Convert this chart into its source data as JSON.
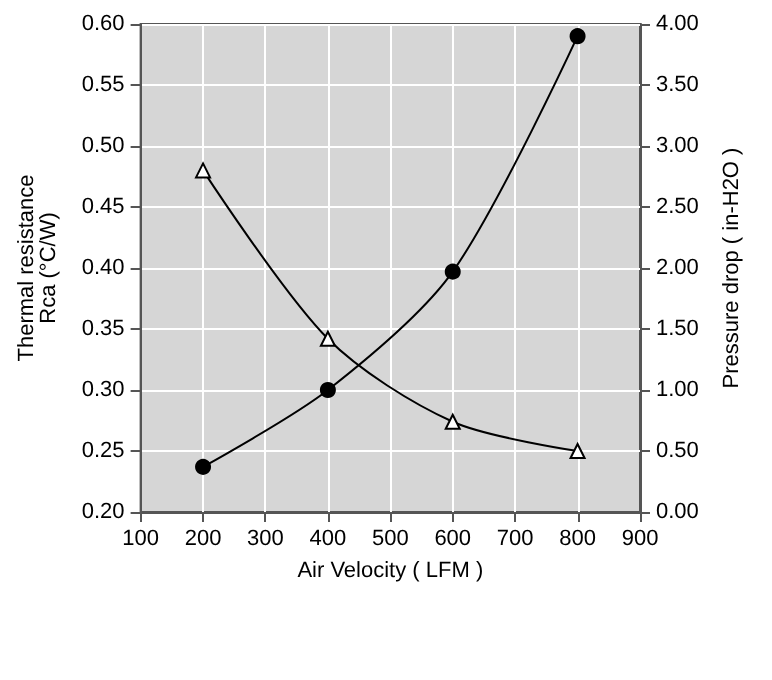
{
  "chart_data": {
    "type": "line",
    "xlabel": "Air Velocity ( LFM )",
    "ylabel": "Thermal resistance\nRca (°C/W)",
    "y2label": "Pressure drop ( in-H2O )",
    "x": [
      200,
      400,
      600,
      800
    ],
    "series": [
      {
        "color": "#000000",
        "marker": "triangle",
        "values": [
          0.48,
          0.342,
          0.274,
          0.25
        ]
      },
      {
        "color": "#000000",
        "marker": "circle",
        "axis": "y2",
        "values": [
          0.37,
          1.0,
          1.97,
          3.9
        ]
      }
    ],
    "xlim": [
      100,
      900
    ],
    "xticks": [
      100,
      200,
      300,
      400,
      500,
      600,
      700,
      800,
      900
    ],
    "ylim": [
      0.2,
      0.6
    ],
    "yticks": [
      {
        "value": 0.2,
        "label": "0.20"
      },
      {
        "value": 0.25,
        "label": "0.25"
      },
      {
        "value": 0.3,
        "label": "0.30"
      },
      {
        "value": 0.35,
        "label": "0.35"
      },
      {
        "value": 0.4,
        "label": "0.40"
      },
      {
        "value": 0.45,
        "label": "0.45"
      },
      {
        "value": 0.5,
        "label": "0.50"
      },
      {
        "value": 0.55,
        "label": "0.55"
      },
      {
        "value": 0.6,
        "label": "0.60"
      }
    ],
    "y2lim": [
      0,
      4
    ],
    "y2ticks": [
      {
        "value": 0,
        "label": "0.00"
      },
      {
        "value": 0.5,
        "label": "0.50"
      },
      {
        "value": 1,
        "label": "1.00"
      },
      {
        "value": 1.5,
        "label": "1.50"
      },
      {
        "value": 2,
        "label": "2.00"
      },
      {
        "value": 2.5,
        "label": "2.50"
      },
      {
        "value": 3,
        "label": "3.00"
      },
      {
        "value": 3.5,
        "label": "3.50"
      },
      {
        "value": 4,
        "label": "4.00"
      }
    ],
    "grid": true
  }
}
